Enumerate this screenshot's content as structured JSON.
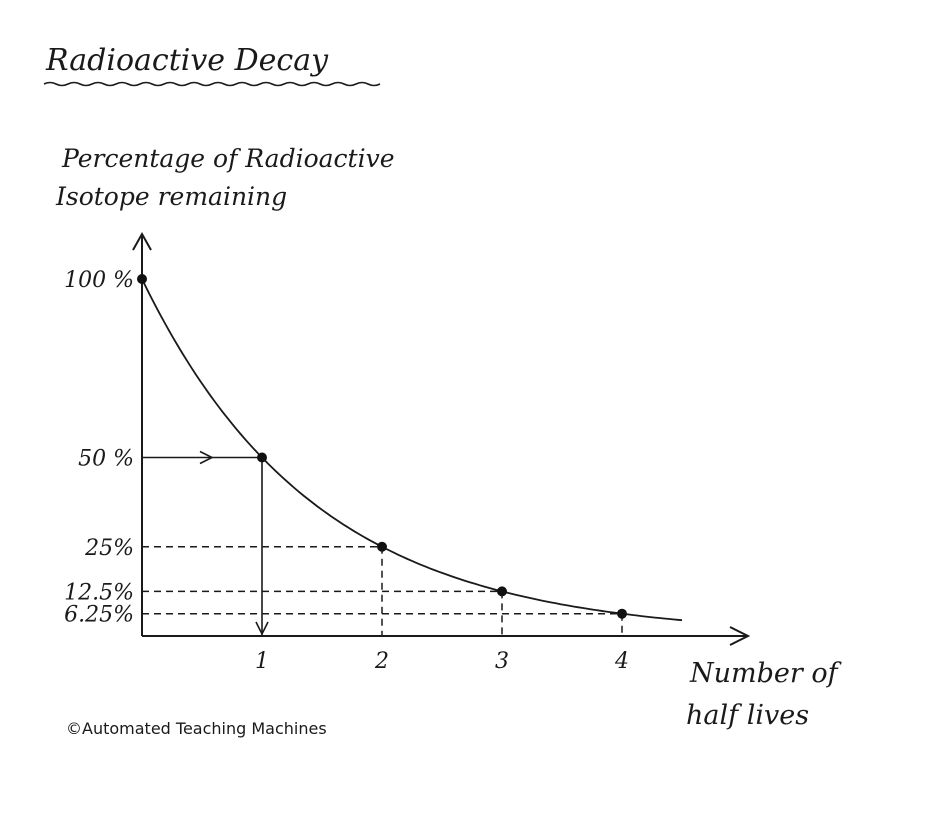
{
  "title": "Radioactive Decay",
  "credit": "©Automated Teaching Machines",
  "colors": {
    "ink": "#1a1a1a",
    "paper": "#ffffff"
  },
  "chart_data": {
    "type": "line",
    "ylabel_lines": [
      "Percentage of Radioactive",
      "Isotope remaining"
    ],
    "xlabel_lines": [
      "Number of",
      "half lives"
    ],
    "x": [
      0,
      1,
      2,
      3,
      4
    ],
    "y": [
      100,
      50,
      25,
      12.5,
      6.25
    ],
    "x_tick_labels": [
      "1",
      "2",
      "3",
      "4"
    ],
    "y_tick_labels": [
      "100 %",
      "50 %",
      "25%",
      "12.5%",
      "6.25%"
    ],
    "xlim": [
      0,
      4.5
    ],
    "ylim": [
      0,
      100
    ],
    "grid": false,
    "legend": "none"
  }
}
